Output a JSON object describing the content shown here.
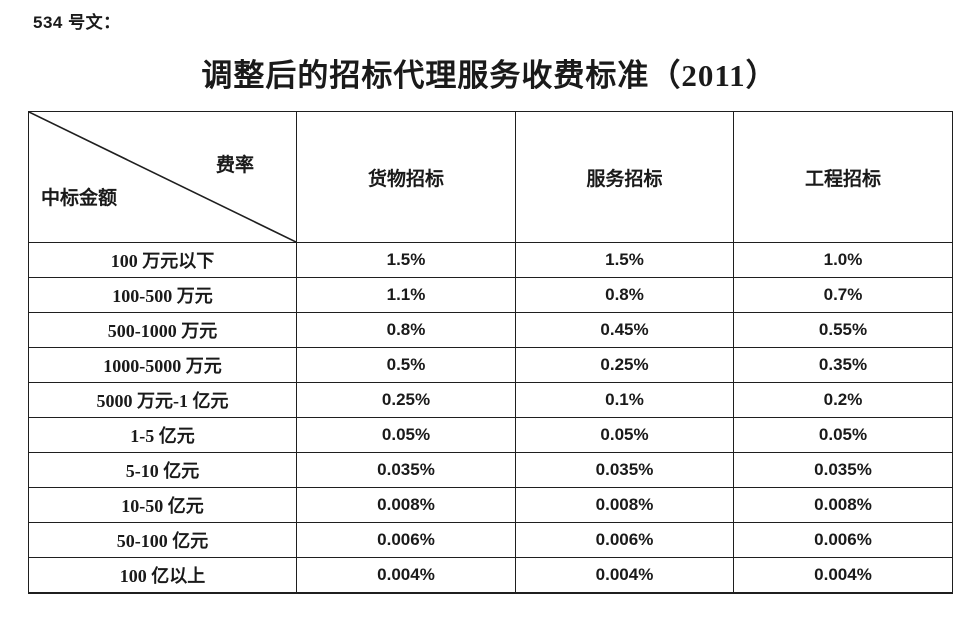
{
  "doc": {
    "ref_label": "534 号文：",
    "title": "调整后的招标代理服务收费标准（2011）"
  },
  "table": {
    "corner": {
      "top_right": "费率",
      "bottom_left": "中标金额"
    },
    "columns": [
      "货物招标",
      "服务招标",
      "工程招标"
    ],
    "rows": [
      {
        "label": "100 万元以下",
        "values": [
          "1.5%",
          "1.5%",
          "1.0%"
        ]
      },
      {
        "label": "100-500 万元",
        "values": [
          "1.1%",
          "0.8%",
          "0.7%"
        ]
      },
      {
        "label": "500-1000 万元",
        "values": [
          "0.8%",
          "0.45%",
          "0.55%"
        ]
      },
      {
        "label": "1000-5000 万元",
        "values": [
          "0.5%",
          "0.25%",
          "0.35%"
        ]
      },
      {
        "label": "5000 万元-1 亿元",
        "values": [
          "0.25%",
          "0.1%",
          "0.2%"
        ]
      },
      {
        "label": "1-5 亿元",
        "values": [
          "0.05%",
          "0.05%",
          "0.05%"
        ]
      },
      {
        "label": "5-10 亿元",
        "values": [
          "0.035%",
          "0.035%",
          "0.035%"
        ]
      },
      {
        "label": "10-50 亿元",
        "values": [
          "0.008%",
          "0.008%",
          "0.008%"
        ]
      },
      {
        "label": "50-100 亿元",
        "values": [
          "0.006%",
          "0.006%",
          "0.006%"
        ]
      },
      {
        "label": "100 亿以上",
        "values": [
          "0.004%",
          "0.004%",
          "0.004%"
        ]
      }
    ]
  },
  "colors": {
    "background": "#ffffff",
    "text": "#1a1a1a",
    "border": "#1f1f1f"
  }
}
